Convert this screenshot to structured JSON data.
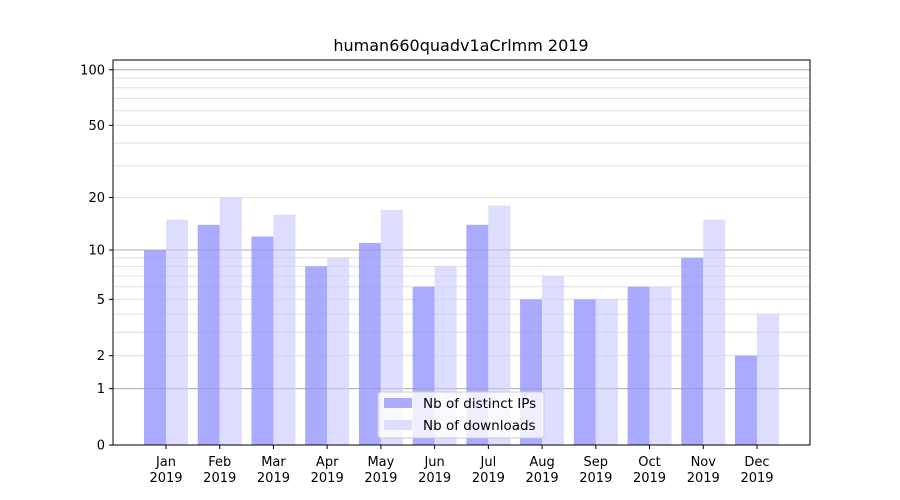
{
  "chart_data": {
    "type": "bar",
    "title": "human660quadv1aCrlmm 2019",
    "xlabel": "",
    "ylabel": "",
    "yscale": "log10(1+y)",
    "ylim": [
      0,
      110
    ],
    "y_ticks": [
      0,
      1,
      2,
      5,
      10,
      20,
      50,
      100
    ],
    "y_tick_labels": [
      "0",
      "1",
      "2",
      "5",
      "10",
      "20",
      "50",
      "100"
    ],
    "major_grid": [
      1,
      10,
      100
    ],
    "minor_grid": [
      2,
      3,
      4,
      5,
      6,
      7,
      8,
      9,
      20,
      30,
      40,
      50,
      60,
      70,
      80,
      90
    ],
    "grid": true,
    "legend_position": "bottom-center",
    "categories": [
      {
        "month": "Jan",
        "year": "2019"
      },
      {
        "month": "Feb",
        "year": "2019"
      },
      {
        "month": "Mar",
        "year": "2019"
      },
      {
        "month": "Apr",
        "year": "2019"
      },
      {
        "month": "May",
        "year": "2019"
      },
      {
        "month": "Jun",
        "year": "2019"
      },
      {
        "month": "Jul",
        "year": "2019"
      },
      {
        "month": "Aug",
        "year": "2019"
      },
      {
        "month": "Sep",
        "year": "2019"
      },
      {
        "month": "Oct",
        "year": "2019"
      },
      {
        "month": "Nov",
        "year": "2019"
      },
      {
        "month": "Dec",
        "year": "2019"
      }
    ],
    "series": [
      {
        "name": "Nb of distinct IPs",
        "color": "#aaaaff",
        "values": [
          10,
          14,
          12,
          8,
          11,
          6,
          14,
          5,
          5,
          6,
          9,
          2
        ]
      },
      {
        "name": "Nb of downloads",
        "color": "#ddddff",
        "values": [
          15,
          20,
          16,
          9,
          17,
          8,
          18,
          7,
          5,
          6,
          15,
          4
        ]
      }
    ]
  }
}
